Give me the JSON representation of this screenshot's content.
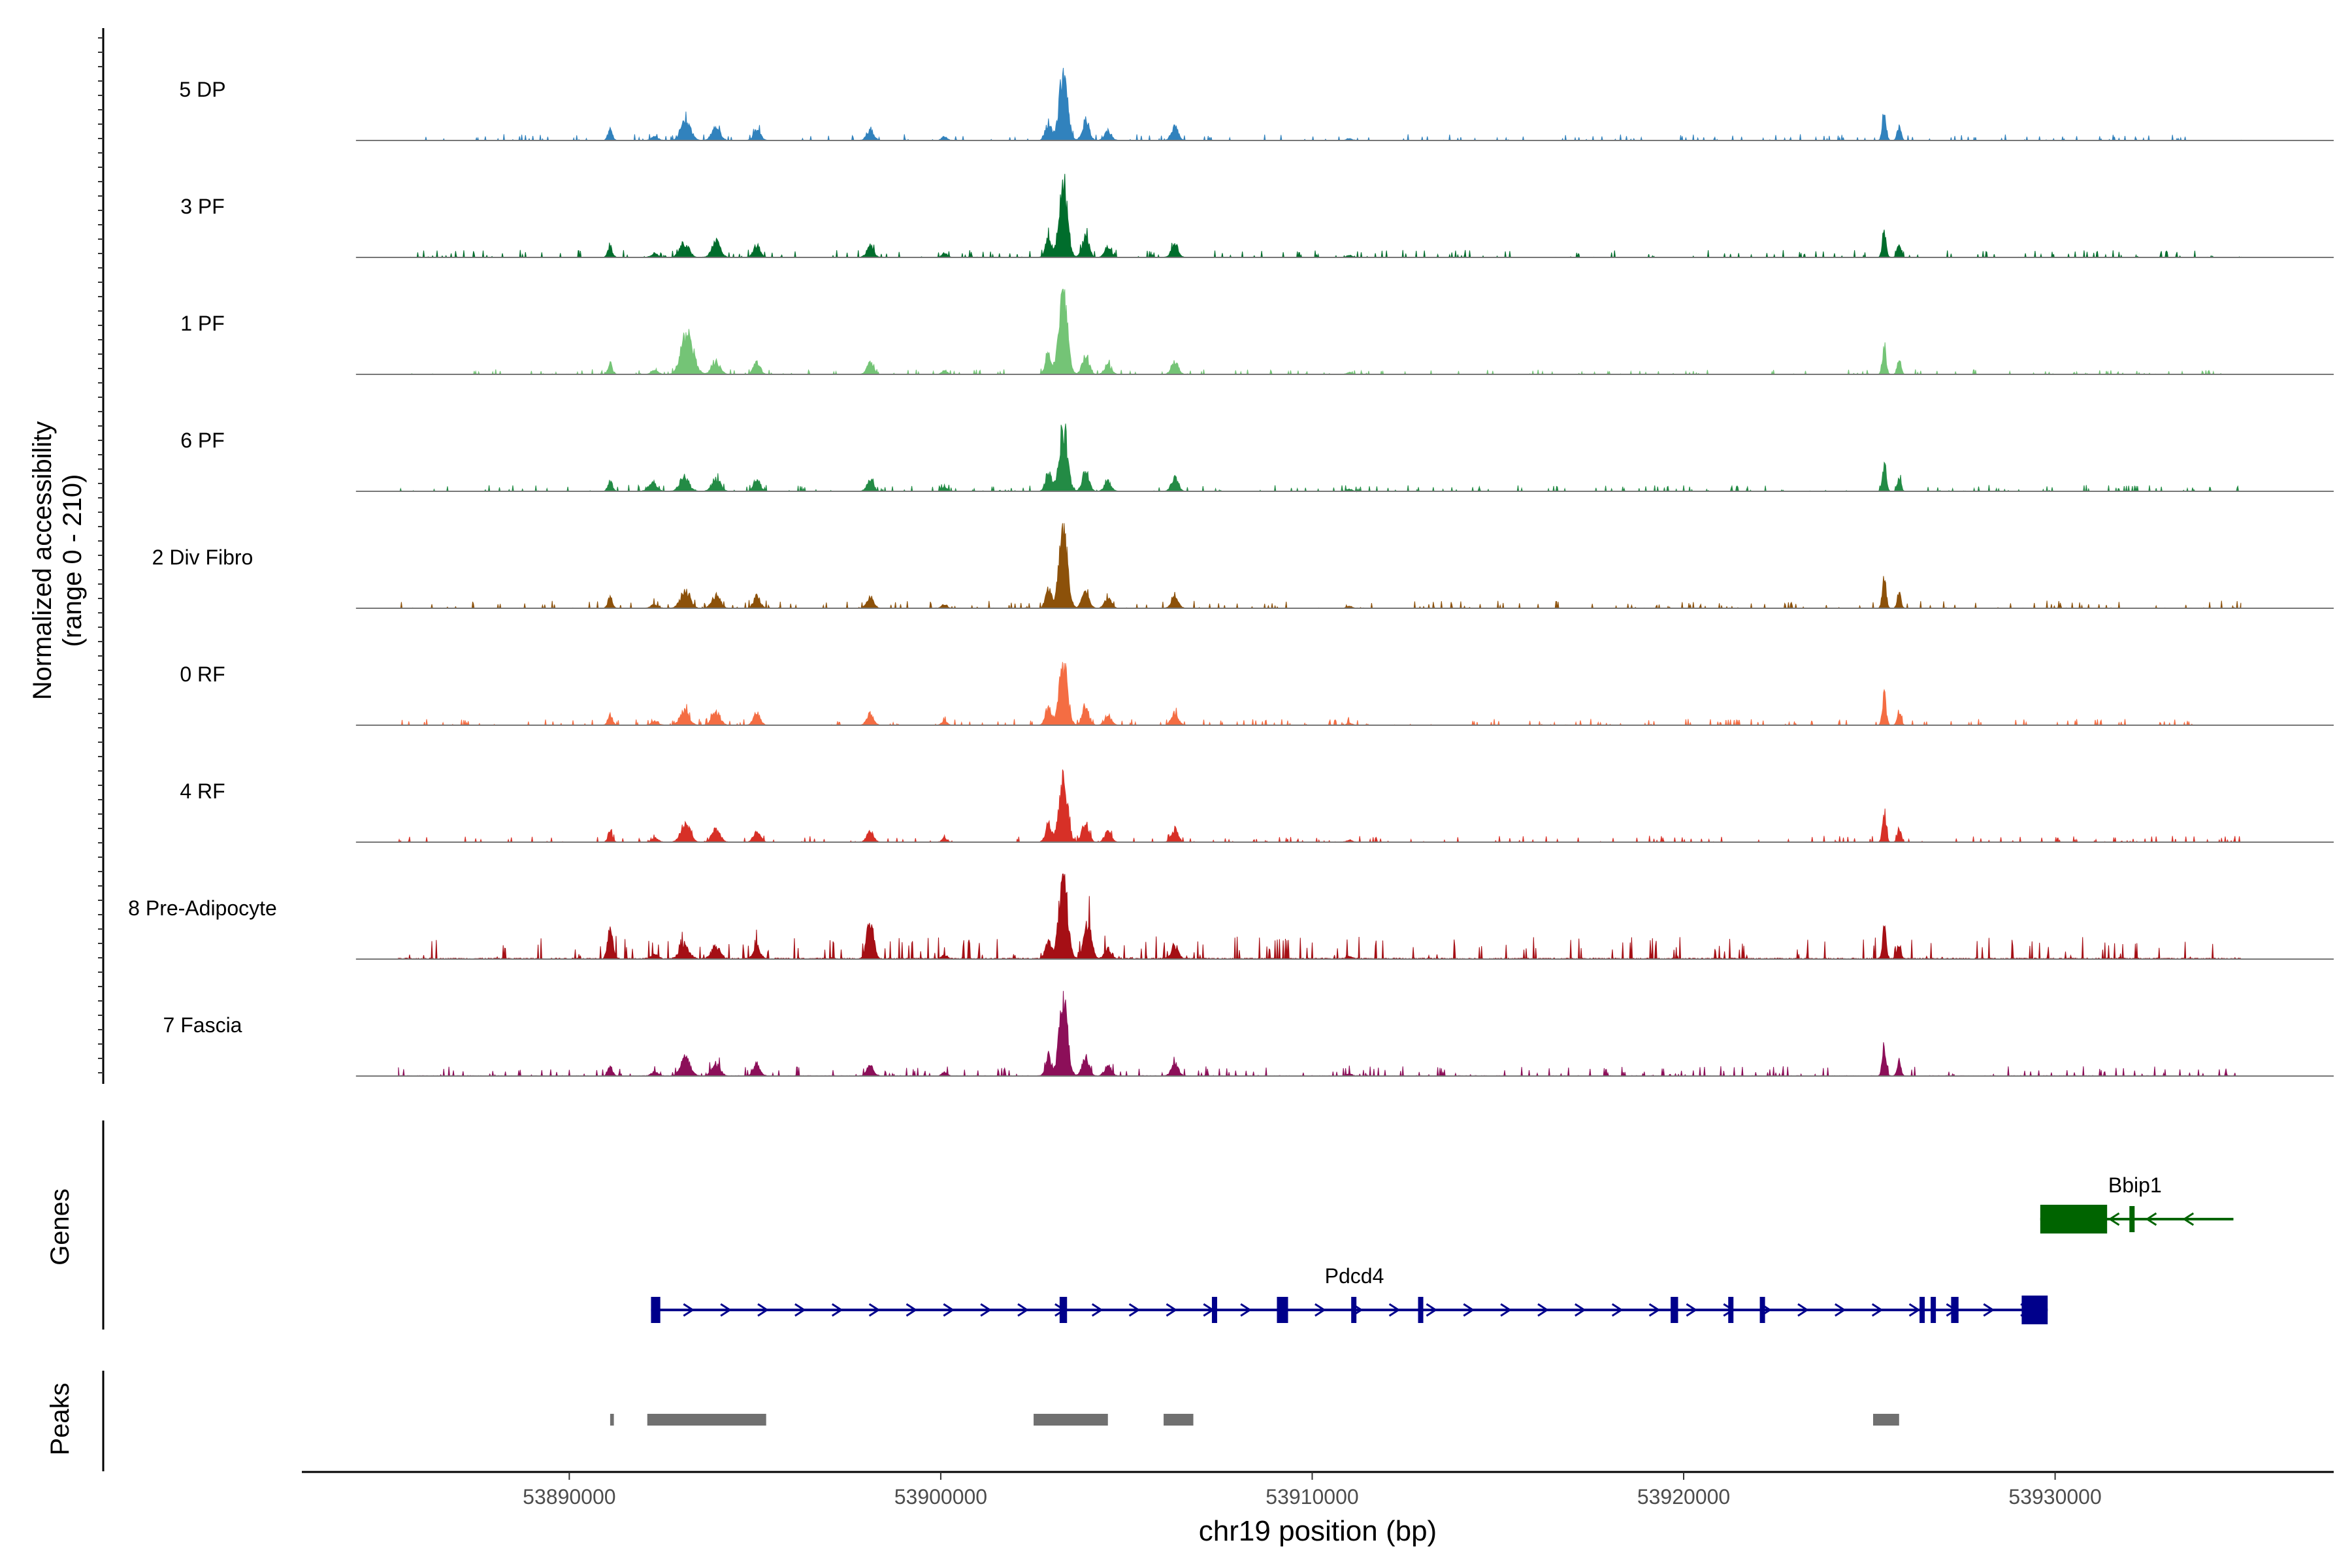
{
  "chart_data": {
    "type": "area",
    "title": "",
    "ylabel_line1": "Normalized accessibility",
    "ylabel_line2": "(range 0 - 210)",
    "xlabel": "chr19 position (bp)",
    "xlim": [
      53882800,
      53937500
    ],
    "yrange": [
      0,
      210
    ],
    "xticks": [
      {
        "value": 53890000,
        "label": "53890000"
      },
      {
        "value": 53900000,
        "label": "53900000"
      },
      {
        "value": 53910000,
        "label": "53910000"
      },
      {
        "value": 53920000,
        "label": "53920000"
      },
      {
        "value": 53930000,
        "label": "53930000"
      }
    ],
    "coverage_span": [
      53885400,
      53935000
    ],
    "common_peaks": [
      {
        "pos": 53891100,
        "w": 60,
        "h": 0.16
      },
      {
        "pos": 53892300,
        "w": 90,
        "h": 0.06
      },
      {
        "pos": 53893100,
        "w": 120,
        "h": 0.22
      },
      {
        "pos": 53893950,
        "w": 110,
        "h": 0.2
      },
      {
        "pos": 53895050,
        "w": 90,
        "h": 0.18
      },
      {
        "pos": 53898100,
        "w": 90,
        "h": 0.17
      },
      {
        "pos": 53900100,
        "w": 70,
        "h": 0.06
      },
      {
        "pos": 53903300,
        "w": 110,
        "h": 1.0
      },
      {
        "pos": 53902900,
        "w": 80,
        "h": 0.28
      },
      {
        "pos": 53903900,
        "w": 90,
        "h": 0.3
      },
      {
        "pos": 53904500,
        "w": 90,
        "h": 0.15
      },
      {
        "pos": 53906300,
        "w": 90,
        "h": 0.2
      },
      {
        "pos": 53911000,
        "w": 70,
        "h": 0.03
      },
      {
        "pos": 53925400,
        "w": 50,
        "h": 0.45
      },
      {
        "pos": 53925800,
        "w": 50,
        "h": 0.22
      }
    ],
    "series": [
      {
        "name": "5 DP",
        "color": "#3182bd",
        "peak": 1.0,
        "noise": 0.025,
        "extra": [
          {
            "pos": 53893200,
            "w": 120,
            "h": 0.12
          }
        ]
      },
      {
        "name": "3 PF",
        "color": "#006d2c",
        "peak": 1.15,
        "noise": 0.03,
        "extra": [
          {
            "pos": 53893950,
            "w": 110,
            "h": 0.05
          }
        ]
      },
      {
        "name": "1 PF",
        "color": "#74c476",
        "peak": 1.25,
        "noise": 0.02,
        "extra": [
          {
            "pos": 53893200,
            "w": 160,
            "h": 0.45
          }
        ]
      },
      {
        "name": "6 PF",
        "color": "#238b45",
        "peak": 1.0,
        "noise": 0.025,
        "extra": [
          {
            "pos": 53892200,
            "w": 100,
            "h": 0.08
          }
        ]
      },
      {
        "name": "2 Div Fibro",
        "color": "#8c510a",
        "peak": 1.3,
        "noise": 0.03,
        "extra": [
          {
            "pos": 53893200,
            "w": 100,
            "h": 0.06
          }
        ]
      },
      {
        "name": "0 RF",
        "color": "#f46d43",
        "peak": 0.95,
        "noise": 0.025,
        "extra": []
      },
      {
        "name": "4 RF",
        "color": "#d73027",
        "peak": 1.0,
        "noise": 0.025,
        "extra": [
          {
            "pos": 53893200,
            "w": 110,
            "h": 0.08
          }
        ]
      },
      {
        "name": "8 Pre-Adipocyte",
        "color": "#a50f15",
        "peak": 1.3,
        "noise": 0.09,
        "extra": [
          {
            "pos": 53891100,
            "w": 70,
            "h": 0.35
          },
          {
            "pos": 53898100,
            "w": 90,
            "h": 0.45
          },
          {
            "pos": 53904000,
            "w": 80,
            "h": 0.4
          }
        ]
      },
      {
        "name": "7 Fascia",
        "color": "#8c0f59",
        "peak": 1.15,
        "noise": 0.04,
        "extra": [
          {
            "pos": 53893200,
            "w": 120,
            "h": 0.08
          }
        ]
      }
    ],
    "genes_label": "Genes",
    "genes": [
      {
        "name": "Bbip1",
        "strand": "-",
        "color": "#006400",
        "start": 53929600,
        "end": 53934800,
        "exons": [
          [
            53929600,
            53931400
          ],
          [
            53932000,
            53932100
          ]
        ]
      },
      {
        "name": "Pdcd4",
        "strand": "+",
        "color": "#00008b",
        "start": 53892200,
        "end": 53929800,
        "exons": [
          [
            53892200,
            53892450
          ],
          [
            53903200,
            53903400
          ],
          [
            53907300,
            53907400
          ],
          [
            53909050,
            53909350
          ],
          [
            53911050,
            53911100
          ],
          [
            53912850,
            53912950
          ],
          [
            53919650,
            53919850
          ],
          [
            53921200,
            53921300
          ],
          [
            53922050,
            53922150
          ],
          [
            53926350,
            53926450
          ],
          [
            53926650,
            53926750
          ],
          [
            53927200,
            53927400
          ],
          [
            53929100,
            53929800
          ]
        ]
      }
    ],
    "peaks_label": "Peaks",
    "peaks": [
      [
        53891100,
        53891200
      ],
      [
        53892100,
        53895300
      ],
      [
        53902500,
        53904500
      ],
      [
        53906000,
        53906800
      ],
      [
        53925100,
        53925800
      ]
    ]
  }
}
